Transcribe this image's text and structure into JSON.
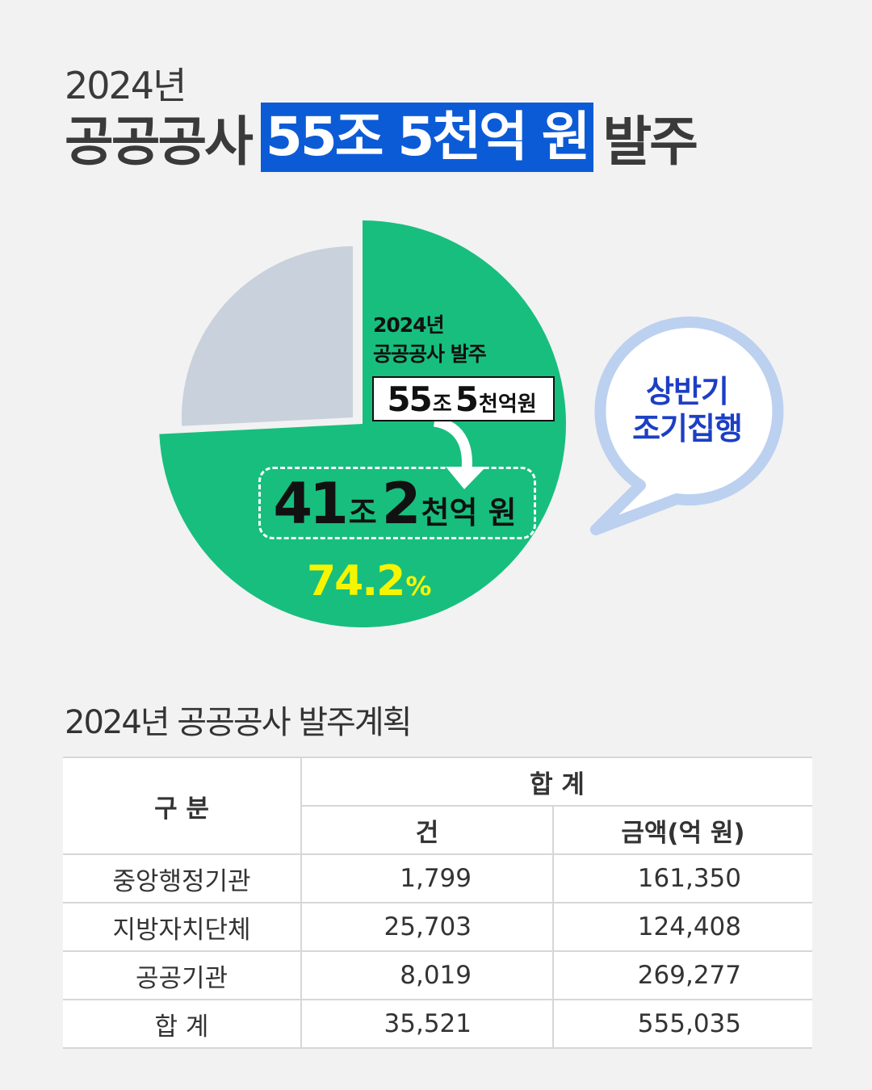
{
  "header": {
    "year": "2024년",
    "headline_pre": "공공공사",
    "headline_highlight": "55조 5천억 원",
    "headline_post": "발주"
  },
  "pie": {
    "label_year": "2024년",
    "label_desc": "공공공사 발주",
    "total_a": "55",
    "total_unit1": "조",
    "total_b": "5",
    "total_unit2": "천억원",
    "result_a": "41",
    "result_unit1": "조",
    "result_b": "2",
    "result_unit2": "천억 원",
    "percent_value": "74.2",
    "percent_sign": "%",
    "colors": {
      "main": "#18be7e",
      "rest": "#c8d1dc",
      "highlight": "#f5f500"
    }
  },
  "bubble": {
    "line1": "상반기",
    "line2": "조기집행",
    "colors": {
      "border": "#bcd0f0",
      "text": "#1c3fc4"
    }
  },
  "table_section": {
    "title": "2024년 공공공사 발주계획",
    "header_category": "구 분",
    "header_total": "합 계",
    "header_count": "건",
    "header_amount": "금액(억 원)",
    "rows": [
      {
        "category": "중앙행정기관",
        "count": "1,799",
        "amount": "161,350"
      },
      {
        "category": "지방자치단체",
        "count": "25,703",
        "amount": "124,408"
      },
      {
        "category": "공공기관",
        "count": "8,019",
        "amount": "269,277"
      },
      {
        "category": "합 계",
        "count": "35,521",
        "amount": "555,035"
      }
    ]
  },
  "chart_data": {
    "type": "pie",
    "title": "",
    "slices": [
      {
        "label": "상반기",
        "value": 74.2
      },
      {
        "label": "",
        "value": 25.8
      }
    ]
  }
}
